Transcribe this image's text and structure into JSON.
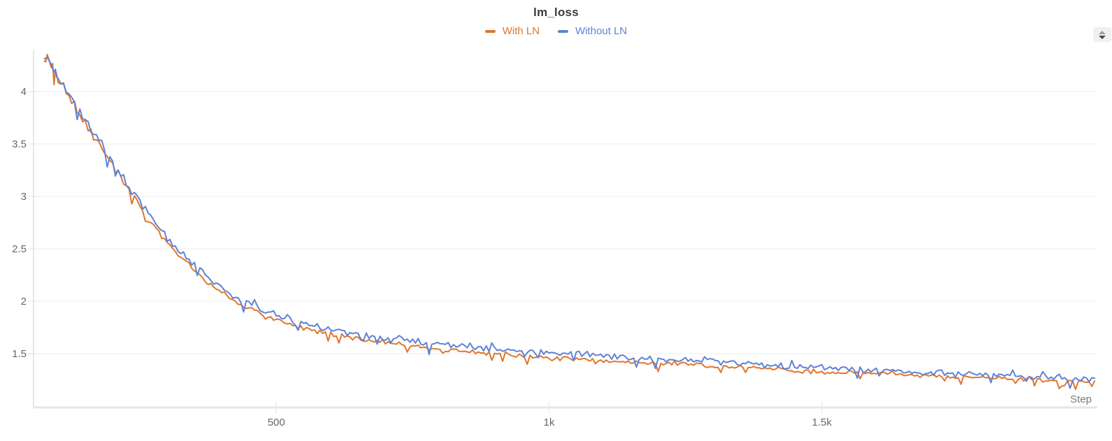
{
  "controls": {
    "sort_icon": "up-down-arrows"
  },
  "colors": {
    "grid": "#eeeef1",
    "axis": "#e6e6ea",
    "tick_stub": "#e4e4e8",
    "tick_label": "#67676f",
    "axis_title": "#7b7b83",
    "title_text": "#3b3b42"
  },
  "chart_data": {
    "type": "line",
    "title": "lm_loss",
    "xlabel": "Step",
    "ylabel": "",
    "legend_position": "top",
    "grid": "horizontal-only",
    "x_range": [
      55,
      2005
    ],
    "y_range": [
      0.987,
      4.393
    ],
    "x_ticks": [
      {
        "value": 500,
        "label": "500"
      },
      {
        "value": 1000,
        "label": "1k"
      },
      {
        "value": 1500,
        "label": "1.5k"
      }
    ],
    "y_ticks": [
      {
        "value": 1.5,
        "label": "1.5"
      },
      {
        "value": 2,
        "label": "2"
      },
      {
        "value": 2.5,
        "label": "2.5"
      },
      {
        "value": 3,
        "label": "3"
      },
      {
        "value": 3.5,
        "label": "3.5"
      },
      {
        "value": 4,
        "label": "4"
      }
    ],
    "steps": [
      75,
      100,
      150,
      200,
      250,
      300,
      350,
      400,
      450,
      500,
      550,
      600,
      650,
      700,
      750,
      800,
      850,
      900,
      950,
      1000,
      1050,
      1100,
      1150,
      1200,
      1250,
      1300,
      1350,
      1400,
      1450,
      1500,
      1550,
      1600,
      1650,
      1700,
      1750,
      1800,
      1850,
      1900,
      1950,
      2000
    ],
    "series": [
      {
        "name": "With LN",
        "color": "#e0762d",
        "noise_factor": 0.95,
        "values": [
          4.33,
          4.11,
          3.7,
          3.31,
          2.9,
          2.56,
          2.29,
          2.08,
          1.93,
          1.82,
          1.75,
          1.69,
          1.64,
          1.6,
          1.57,
          1.54,
          1.52,
          1.5,
          1.48,
          1.46,
          1.45,
          1.43,
          1.42,
          1.41,
          1.4,
          1.38,
          1.37,
          1.36,
          1.34,
          1.33,
          1.32,
          1.31,
          1.3,
          1.29,
          1.28,
          1.27,
          1.26,
          1.25,
          1.24,
          1.23
        ]
      },
      {
        "name": "Without LN",
        "color": "#5f82d5",
        "noise_factor": 1.3,
        "values": [
          4.33,
          4.13,
          3.73,
          3.34,
          2.93,
          2.61,
          2.34,
          2.13,
          1.98,
          1.87,
          1.8,
          1.74,
          1.69,
          1.65,
          1.62,
          1.59,
          1.57,
          1.55,
          1.53,
          1.51,
          1.49,
          1.48,
          1.46,
          1.45,
          1.44,
          1.42,
          1.41,
          1.39,
          1.38,
          1.37,
          1.36,
          1.34,
          1.33,
          1.32,
          1.31,
          1.3,
          1.29,
          1.28,
          1.27,
          1.26
        ]
      }
    ],
    "noise": {
      "seed": 42,
      "upsample": 10,
      "base_amplitude": 0.013,
      "relative_amplitude": 0.011,
      "spike_chance": 0.07,
      "spike_scale_min": 1.1,
      "spike_scale_extra": 1.4,
      "up_spike_chance": 0.03,
      "up_spike_scale": 1.2
    }
  }
}
